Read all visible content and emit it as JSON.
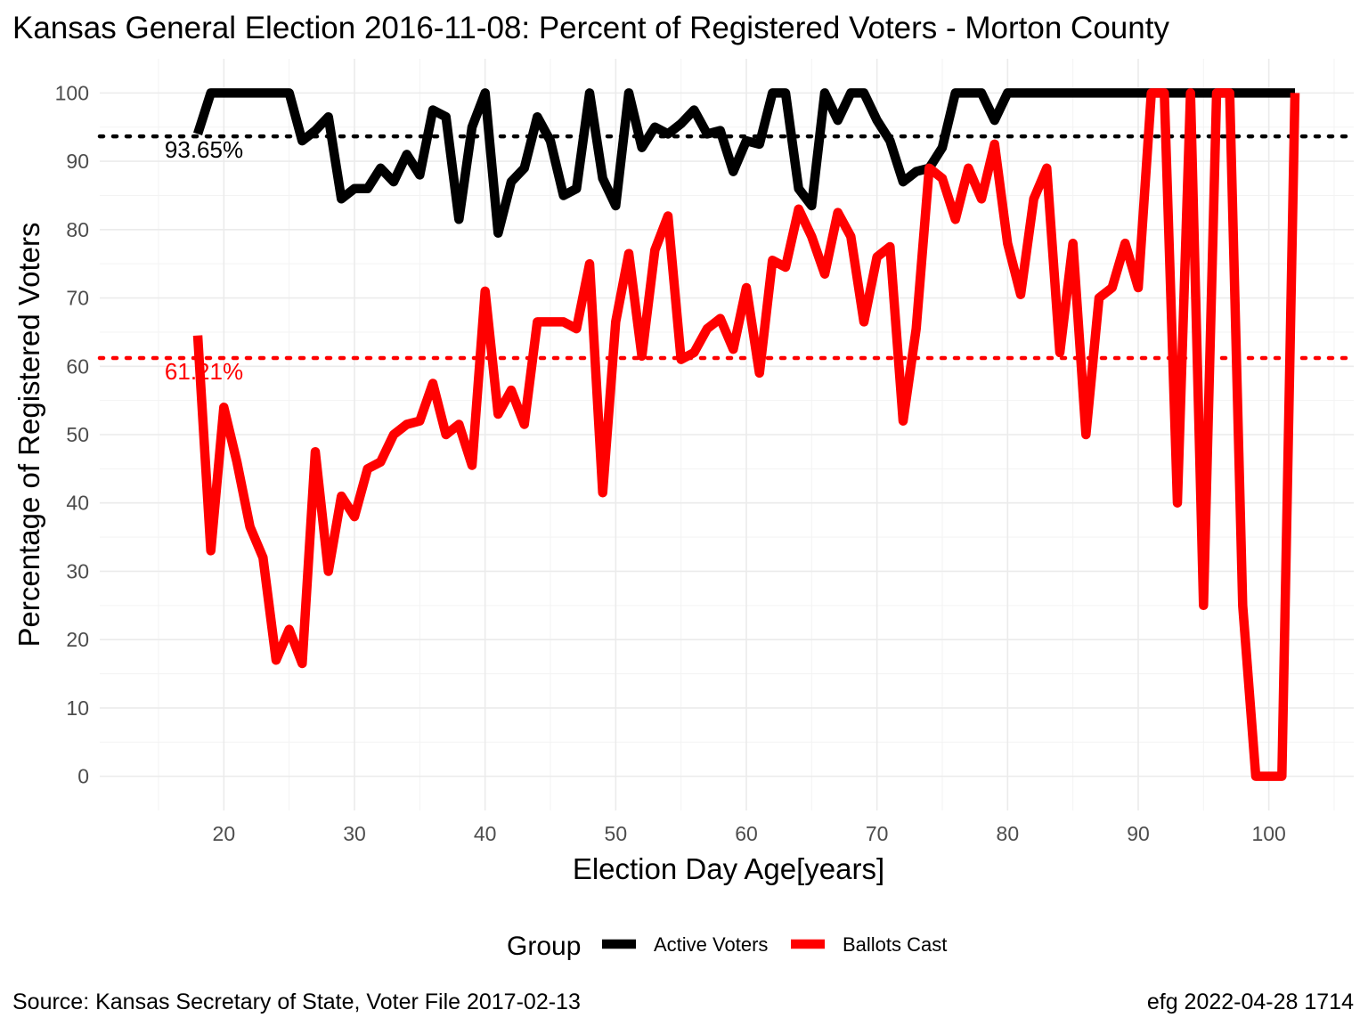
{
  "title": "Kansas General Election 2016-11-08:  Percent of Registered Voters - Morton County",
  "caption_left": "Source:  Kansas Secretary of State, Voter File  2017-02-13",
  "caption_right": "efg 2022-04-28 1714",
  "colors": {
    "active": "#000000",
    "ballots": "#ff0000",
    "grid": "#ebebeb",
    "tick": "#4d4d4d"
  },
  "chart_data": {
    "type": "line",
    "title": "Kansas General Election 2016-11-08:  Percent of Registered Voters - Morton County",
    "xlabel": "Election Day Age[years]",
    "ylabel": "Percentage of Registered Voters",
    "xlim": [
      10.5,
      106.5
    ],
    "ylim": [
      -5,
      105
    ],
    "x_ticks": [
      20,
      30,
      40,
      50,
      60,
      70,
      80,
      90,
      100
    ],
    "y_ticks": [
      0,
      10,
      20,
      30,
      40,
      50,
      60,
      70,
      80,
      90,
      100
    ],
    "grid": true,
    "legend": {
      "title": "Group",
      "position": "bottom"
    },
    "x": [
      18,
      19,
      20,
      21,
      22,
      23,
      24,
      25,
      26,
      27,
      28,
      29,
      30,
      31,
      32,
      33,
      34,
      35,
      36,
      37,
      38,
      39,
      40,
      41,
      42,
      43,
      44,
      45,
      46,
      47,
      48,
      49,
      50,
      51,
      52,
      53,
      54,
      55,
      56,
      57,
      58,
      59,
      60,
      61,
      62,
      63,
      64,
      65,
      66,
      67,
      68,
      69,
      70,
      71,
      72,
      73,
      74,
      75,
      76,
      77,
      78,
      79,
      80,
      81,
      82,
      83,
      84,
      85,
      86,
      87,
      88,
      89,
      90,
      91,
      92,
      93,
      94,
      95,
      96,
      97,
      98,
      99,
      100,
      101,
      102
    ],
    "series": [
      {
        "name": "Active Voters",
        "color": "#000000",
        "mean": 93.65,
        "mean_label": "93.65%",
        "values": [
          94,
          100,
          100,
          100,
          100,
          100,
          100,
          100,
          93,
          94.5,
          96.5,
          84.5,
          86,
          86,
          89,
          87,
          91,
          88,
          97.5,
          96.5,
          81.5,
          95,
          100,
          79.5,
          87,
          89,
          96.5,
          93,
          85,
          86,
          100,
          87.5,
          83.5,
          100,
          92,
          95,
          94,
          95.5,
          97.5,
          94,
          94.5,
          88.5,
          93,
          92.5,
          100,
          100,
          86,
          83.5,
          100,
          96,
          100,
          100,
          96,
          93,
          87,
          88.5,
          89,
          92,
          100,
          100,
          100,
          96,
          100,
          100,
          100,
          100,
          100,
          100,
          100,
          100,
          100,
          100,
          100,
          100,
          100,
          100,
          100,
          100,
          100,
          100,
          100,
          100,
          100,
          100,
          100
        ]
      },
      {
        "name": "Ballots Cast",
        "color": "#ff0000",
        "mean": 61.21,
        "mean_label": "61.21%",
        "values": [
          64.5,
          33,
          54,
          46,
          36.5,
          32,
          17,
          21.5,
          16.5,
          47.5,
          30,
          41,
          38,
          45,
          46,
          50,
          51.5,
          52,
          57.5,
          50,
          51.5,
          45.5,
          71,
          53,
          56.5,
          51.5,
          66.5,
          66.5,
          66.5,
          65.5,
          75,
          41.5,
          66.5,
          76.5,
          61.5,
          77,
          82,
          61,
          62,
          65.5,
          67,
          62.5,
          71.5,
          59,
          75.5,
          74.5,
          83,
          79,
          73.5,
          82.5,
          79,
          66.5,
          76,
          77.5,
          52,
          65.5,
          89,
          87.5,
          81.5,
          89,
          84.5,
          92.5,
          78,
          70.5,
          84.5,
          89,
          62,
          78,
          50,
          70,
          71.5,
          78,
          71.5,
          100,
          100,
          40,
          100,
          25,
          100,
          100,
          25,
          0,
          0,
          0,
          100
        ]
      }
    ]
  }
}
